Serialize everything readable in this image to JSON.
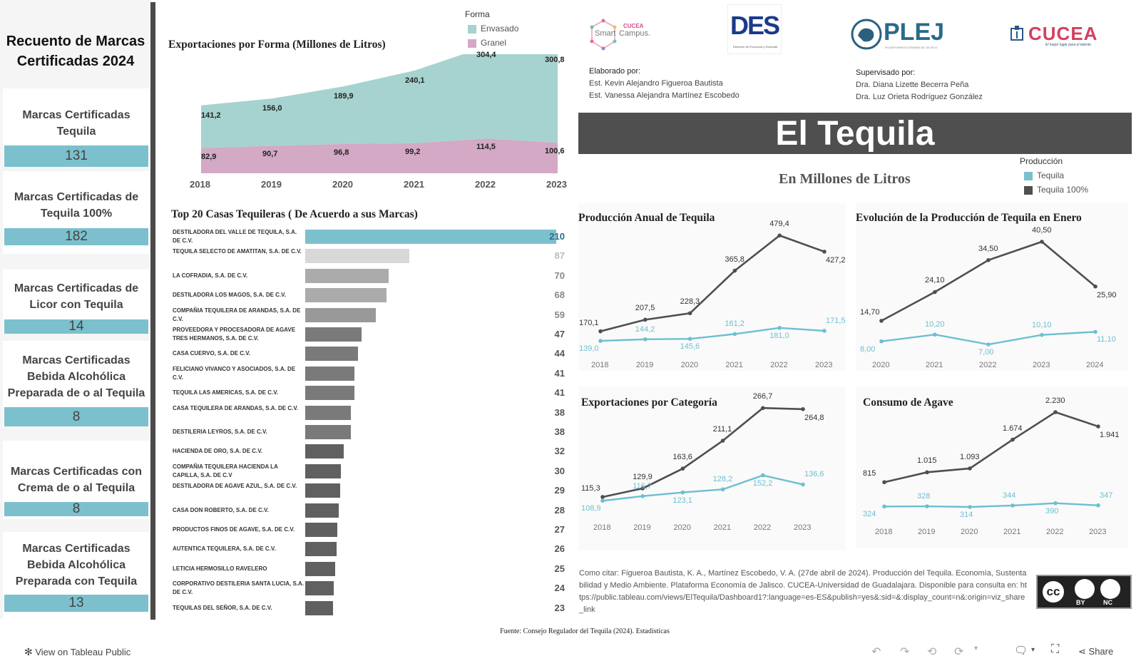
{
  "left_panel": {
    "title": "Recuento de Marcas Certificadas 2024",
    "cards": [
      {
        "label": "Marcas Certificadas Tequila",
        "value": "131"
      },
      {
        "label": "Marcas Certificadas de Tequila 100%",
        "value": "182"
      },
      {
        "label": "Marcas Certificadas de Licor con Tequila",
        "value": "14"
      },
      {
        "label": "Marcas Certificadas Bebida Alcohólica Preparada de o al Tequila",
        "value": "8"
      },
      {
        "label": "Marcas Certificadas con Crema de o al Tequila",
        "value": "8"
      },
      {
        "label": "Marcas Certificadas Bebida Alcohólica Preparada con Tequila",
        "value": "13"
      }
    ]
  },
  "export_form": {
    "title": "Exportaciones por Forma (Millones de Litros)",
    "legend_title": "Forma",
    "legend": [
      "Envasado",
      "Granel"
    ],
    "colors": {
      "envasado": "#a6d3cf",
      "granel": "#d3a9c5"
    }
  },
  "top20": {
    "title": "Top 20 Casas Tequileras ( De Acuerdo a sus Marcas)",
    "items": [
      {
        "name": "DESTILADORA DEL VALLE DE TEQUILA, S.A. DE C.V.",
        "value": "210"
      },
      {
        "name": "TEQUILA SELECTO DE AMATITAN, S.A. DE C.V.",
        "value": "87"
      },
      {
        "name": "LA COFRADIA, S.A. DE C.V.",
        "value": "70"
      },
      {
        "name": "DESTILADORA LOS MAGOS, S.A. DE C.V.",
        "value": "68"
      },
      {
        "name": "COMPAÑIA TEQUILERA DE ARANDAS, S.A. DE C.V.",
        "value": "59"
      },
      {
        "name": "PROVEEDORA Y PROCESADORA DE AGAVE TRES HERMANOS, S.A. DE C.V.",
        "value": "47"
      },
      {
        "name": "CASA CUERVO, S.A. DE C.V.",
        "value": "44"
      },
      {
        "name": "FELICIANO VIVANCO Y ASOCIADOS, S.A. DE C.V.",
        "value": "41"
      },
      {
        "name": "TEQUILA LAS AMERICAS, S.A. DE C.V.",
        "value": "41"
      },
      {
        "name": "CASA TEQUILERA DE ARANDAS, S.A. DE C.V.",
        "value": "38"
      },
      {
        "name": "DESTILERIA LEYROS, S.A. DE C.V.",
        "value": "38"
      },
      {
        "name": "HACIENDA DE ORO, S.A. DE C.V.",
        "value": "32"
      },
      {
        "name": "COMPAÑIA TEQUILERA HACIENDA LA CAPILLA, S.A. DE C.V",
        "value": "30"
      },
      {
        "name": "DESTILADORA DE AGAVE AZUL, S.A. DE C.V.",
        "value": "29"
      },
      {
        "name": "CASA DON ROBERTO, S.A. DE C.V.",
        "value": "28"
      },
      {
        "name": "PRODUCTOS FINOS DE AGAVE, S.A. DE C.V.",
        "value": "27"
      },
      {
        "name": "AUTENTICA TEQUILERA, S.A. DE C.V.",
        "value": "26"
      },
      {
        "name": "LETICIA HERMOSILLO RAVELERO",
        "value": "25"
      },
      {
        "name": "CORPORATIVO DESTILERIA SANTA LUCIA, S.A. DE C.V.",
        "value": "24"
      },
      {
        "name": "TEQUILAS DEL SEÑOR, S.A. DE C.V.",
        "value": "23"
      }
    ]
  },
  "logos": {
    "smart_campus_top": "CUCEA",
    "smart_campus_left": "Smart",
    "smart_campus_right": "Campus.",
    "des": "DES",
    "des_sub": "Dirección de Economía y Sociedad",
    "plej": "PLEJ",
    "plej_sub": "PLATAFORMA ECONOMÍA DE JALISCO",
    "cucea": "CUCEA",
    "cucea_sub": "El mejor lugar para el talento"
  },
  "credits": {
    "elaborado_label": "Elaborado por:",
    "elaborado_1": "Est. Kevin Alejandro Figueroa Bautista",
    "elaborado_2": "Est. Vanessa Alejandra Martínez Escobedo",
    "supervisado_label": "Supervisado por:",
    "supervisado_1": "Dra. Diana Lizette Becerra Peña",
    "supervisado_2": "Dra. Luz Orieta Rodríguez González"
  },
  "banner": {
    "title": "El Tequila",
    "subtitle": "En Millones de Litros"
  },
  "production_legend": {
    "title": "Producción",
    "items": [
      "Tequila",
      "Tequila 100%"
    ],
    "colors": [
      "#7cc0cd",
      "#4f4f4f"
    ]
  },
  "citation": "Como citar: Figueroa Bautista, K. A., Martínez Escobedo, V. A. (27de abril de 2024). Producción del Tequila. Economía, Sustentabilidad y Medio Ambiente. Plataforma Economía de Jalisco. CUCEA-Universidad de Guadalajara. Disponible para consulta en: https://public.tableau.com/views/ElTequila/Dashboard1?:language=es-ES&publish=yes&:sid=&:display_count=n&:origin=viz_share_link",
  "license": {
    "cc": "cc",
    "by": "BY",
    "nc": "NC"
  },
  "source": "Fuente: Consejo Regulador del Tequila (2024). Estadísticas",
  "toolbar": {
    "view_label": "View on Tableau Public",
    "share_label": "Share"
  },
  "chart_data": [
    {
      "type": "area",
      "title": "Exportaciones por Forma (Millones de Litros)",
      "x": [
        "2018",
        "2019",
        "2020",
        "2021",
        "2022",
        "2023"
      ],
      "series": [
        {
          "name": "Envasado",
          "values": [
            141.2,
            156.0,
            189.9,
            240.1,
            304.4,
            300.8
          ],
          "labels": [
            "141,2",
            "156,0",
            "189,9",
            "240,1",
            "304,4",
            "300,8"
          ]
        },
        {
          "name": "Granel",
          "values": [
            82.9,
            90.7,
            96.8,
            99.2,
            114.5,
            100.6
          ],
          "labels": [
            "82,9",
            "90,7",
            "96,8",
            "99,2",
            "114,5",
            "100,6"
          ]
        }
      ]
    },
    {
      "type": "bar",
      "title": "Top 20 Casas Tequileras ( De Acuerdo a sus Marcas)",
      "values": [
        210,
        87,
        70,
        68,
        59,
        47,
        44,
        41,
        41,
        38,
        38,
        32,
        30,
        29,
        28,
        27,
        26,
        25,
        24,
        23
      ]
    },
    {
      "type": "line",
      "title": "Producción Anual de Tequila",
      "x": [
        "2018",
        "2019",
        "2020",
        "2021",
        "2022",
        "2023"
      ],
      "series": [
        {
          "name": "Tequila 100%",
          "values": [
            170.1,
            207.5,
            228.3,
            365.8,
            479.4,
            427.2
          ],
          "labels": [
            "170,1",
            "207,5",
            "228,3",
            "365,8",
            "479,4",
            "427,2"
          ]
        },
        {
          "name": "Tequila",
          "values": [
            139.0,
            144.2,
            145.6,
            161.2,
            181.0,
            171.5
          ],
          "labels": [
            "139,0",
            "144,2",
            "145,6",
            "161,2",
            "181,0",
            "171,5"
          ]
        }
      ]
    },
    {
      "type": "line",
      "title": "Evolución de la Producción de Tequila en Enero",
      "x": [
        "2020",
        "2021",
        "2022",
        "2023",
        "2024"
      ],
      "series": [
        {
          "name": "Tequila 100%",
          "values": [
            14.7,
            24.1,
            34.5,
            40.5,
            25.9
          ],
          "labels": [
            "14,70",
            "24,10",
            "34,50",
            "40,50",
            "25,90"
          ]
        },
        {
          "name": "Tequila",
          "values": [
            8.0,
            10.2,
            7.0,
            10.1,
            11.1
          ],
          "labels": [
            "8,00",
            "10,20",
            "7,00",
            "10,10",
            "11,10"
          ]
        }
      ]
    },
    {
      "type": "line",
      "title": "Exportaciones por Categoría",
      "x": [
        "2018",
        "2019",
        "2020",
        "2021",
        "2022",
        "2023"
      ],
      "series": [
        {
          "name": "Tequila 100%",
          "values": [
            115.3,
            129.9,
            163.6,
            211.1,
            266.7,
            264.8
          ],
          "labels": [
            "115,3",
            "129,9",
            "163,6",
            "211,1",
            "266,7",
            "264,8"
          ]
        },
        {
          "name": "Tequila",
          "values": [
            108.9,
            116.7,
            123.1,
            128.2,
            152.2,
            136.6
          ],
          "labels": [
            "108,9",
            "116,7",
            "123,1",
            "128,2",
            "152,2",
            "136,6"
          ]
        }
      ]
    },
    {
      "type": "line",
      "title": "Consumo de Agave",
      "x": [
        "2018",
        "2019",
        "2020",
        "2021",
        "2022",
        "2023"
      ],
      "series": [
        {
          "name": "Tequila 100%",
          "values": [
            815,
            1015,
            1093,
            1674,
            2230,
            1941
          ],
          "labels": [
            "815",
            "1.015",
            "1.093",
            "1.674",
            "2.230",
            "1.941"
          ]
        },
        {
          "name": "Tequila",
          "values": [
            324,
            328,
            314,
            344,
            390,
            347
          ],
          "labels": [
            "324",
            "328",
            "314",
            "344",
            "390",
            "347"
          ]
        }
      ]
    }
  ]
}
